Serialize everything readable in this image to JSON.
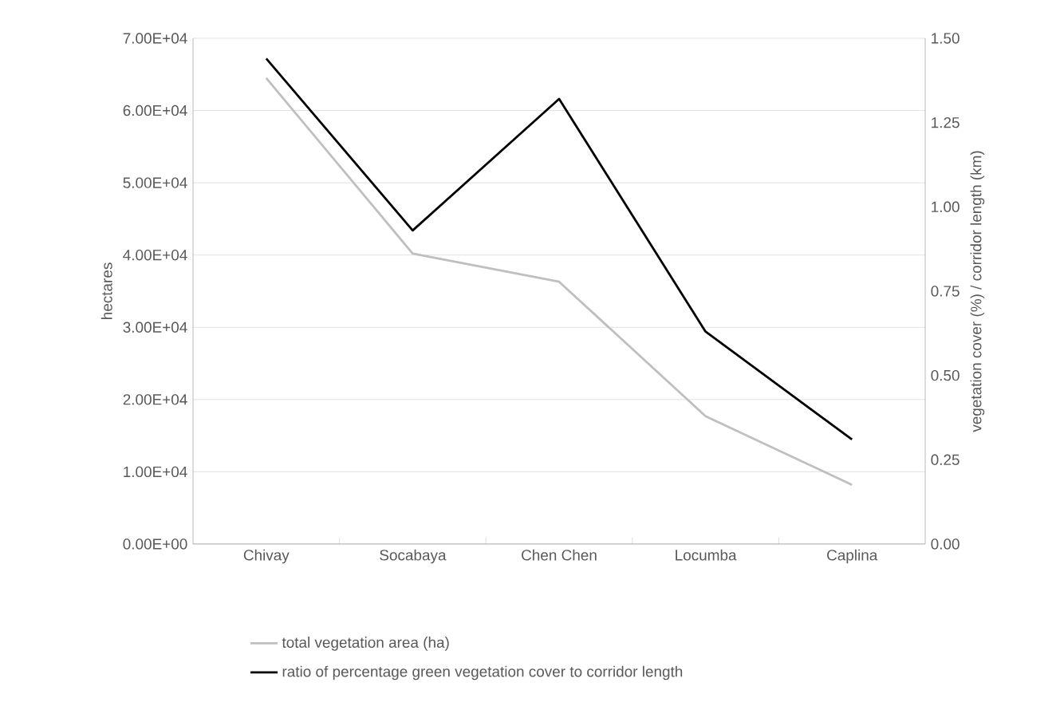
{
  "chart_data": {
    "type": "line",
    "categories": [
      "Chivay",
      "Socabaya",
      "Chen Chen",
      "Locumba",
      "Caplina"
    ],
    "ylabel": "hectares",
    "y2label": "vegetation cover (%) / corridor length (km)",
    "ylim": [
      0,
      70000
    ],
    "yticks": [
      {
        "value": 0,
        "label": "0.00E+00"
      },
      {
        "value": 10000,
        "label": "1.00E+04"
      },
      {
        "value": 20000,
        "label": "2.00E+04"
      },
      {
        "value": 30000,
        "label": "3.00E+04"
      },
      {
        "value": 40000,
        "label": "4.00E+04"
      },
      {
        "value": 50000,
        "label": "5.00E+04"
      },
      {
        "value": 60000,
        "label": "6.00E+04"
      },
      {
        "value": 70000,
        "label": "7.00E+04"
      }
    ],
    "y2lim": [
      0,
      1.5
    ],
    "y2ticks": [
      {
        "value": 0,
        "label": "0.00"
      },
      {
        "value": 0.25,
        "label": "0.25"
      },
      {
        "value": 0.5,
        "label": "0.50"
      },
      {
        "value": 0.75,
        "label": "0.75"
      },
      {
        "value": 1,
        "label": "1.00"
      },
      {
        "value": 1.25,
        "label": "1.25"
      },
      {
        "value": 1.5,
        "label": "1.50"
      }
    ],
    "grid": "y",
    "legend": "bottom",
    "marker": "none",
    "line_style": "solid",
    "series": [
      {
        "name": "total vegetation area (ha)",
        "color": "#bfbfbf",
        "values": [
          64500,
          40200,
          36300,
          17700,
          8200
        ]
      },
      {
        "name": "ratio of percentage green vegetation cover to corridor length",
        "color": "#000000",
        "axis": "y2",
        "values": [
          1.44,
          0.93,
          1.32,
          0.63,
          0.31
        ]
      }
    ]
  }
}
